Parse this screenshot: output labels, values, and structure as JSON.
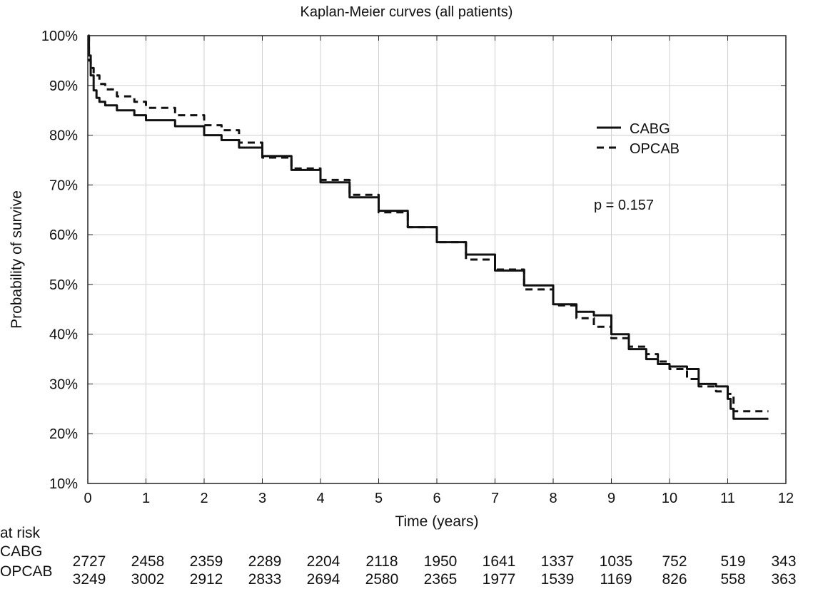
{
  "chart_data": {
    "type": "line",
    "title": "Kaplan-Meier curves (all patients)",
    "xlabel": "Time (years)",
    "ylabel": "Probability of survive",
    "xlim": [
      0,
      12
    ],
    "ylim": [
      10,
      100
    ],
    "x_ticks": [
      "0",
      "1",
      "2",
      "3",
      "4",
      "5",
      "6",
      "7",
      "8",
      "9",
      "10",
      "11",
      "12"
    ],
    "y_ticks": [
      "10%",
      "20%",
      "30%",
      "40%",
      "50%",
      "60%",
      "70%",
      "80%",
      "90%",
      "100%"
    ],
    "grid": true,
    "legend_position": "top-right",
    "annotation": "p = 0.157",
    "series": [
      {
        "name": "CABG",
        "style": "solid",
        "x": [
          0,
          0.02,
          0.05,
          0.1,
          0.15,
          0.2,
          0.3,
          0.5,
          0.8,
          1.0,
          1.5,
          2.0,
          2.3,
          2.6,
          3.0,
          3.5,
          4.0,
          4.5,
          5.0,
          5.5,
          6.0,
          6.5,
          7.0,
          7.5,
          8.0,
          8.4,
          8.7,
          9.0,
          9.3,
          9.6,
          9.8,
          10.0,
          10.3,
          10.5,
          10.8,
          11.0,
          11.05,
          11.1,
          11.7
        ],
        "values": [
          100,
          96,
          92,
          89,
          87.5,
          86.7,
          86,
          85,
          84,
          83,
          81.8,
          80,
          79,
          77.5,
          75.8,
          73,
          70.5,
          67.5,
          64.8,
          61.5,
          58.5,
          56,
          52.8,
          49.8,
          46,
          44.5,
          43.8,
          40,
          37,
          35,
          34,
          33.5,
          33,
          30,
          29.5,
          27,
          25,
          23,
          23
        ]
      },
      {
        "name": "OPCAB",
        "style": "dashed",
        "x": [
          0,
          0.02,
          0.05,
          0.1,
          0.2,
          0.3,
          0.5,
          0.8,
          1.0,
          1.5,
          2.0,
          2.3,
          2.6,
          3.0,
          3.5,
          4.0,
          4.5,
          5.0,
          5.5,
          6.0,
          6.5,
          7.0,
          7.5,
          8.0,
          8.4,
          8.7,
          9.0,
          9.3,
          9.6,
          9.8,
          10.0,
          10.3,
          10.5,
          10.8,
          11.0,
          11.1,
          11.7
        ],
        "values": [
          100,
          95,
          93.5,
          92,
          90.3,
          89.2,
          87.8,
          86.7,
          85.5,
          84,
          82,
          81,
          78.5,
          75.5,
          73.3,
          71,
          68,
          64.5,
          61.5,
          58.5,
          55,
          53,
          49,
          45.8,
          43.2,
          41.5,
          39.2,
          37.5,
          36,
          34.5,
          33,
          31,
          29.5,
          28.5,
          28,
          24.5,
          24.5
        ]
      }
    ]
  },
  "risk_table": {
    "heading": "at risk",
    "rows": [
      {
        "label": "CABG",
        "values": [
          "2727",
          "2458",
          "2359",
          "2289",
          "2204",
          "2118",
          "1950",
          "1641",
          "1337",
          "1035",
          "752",
          "519",
          "343"
        ]
      },
      {
        "label": "OPCAB",
        "values": [
          "3249",
          "3002",
          "2912",
          "2833",
          "2694",
          "2580",
          "2365",
          "1977",
          "1539",
          "1169",
          "826",
          "558",
          "363"
        ]
      }
    ]
  }
}
